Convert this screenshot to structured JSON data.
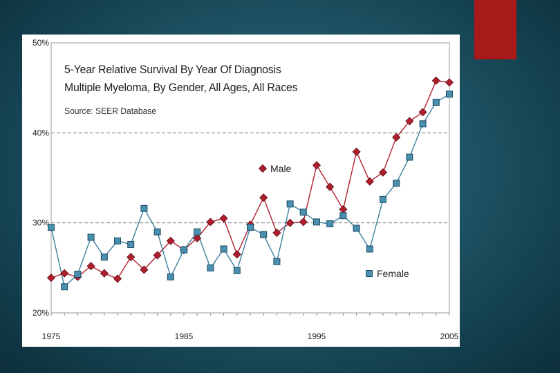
{
  "slide": {
    "background_color": "#1f5566",
    "accent_color": "#a81a1a"
  },
  "chart_data": {
    "type": "line",
    "title": "5-Year Relative Survival By Year Of Diagnosis",
    "subtitle": "Multiple Myeloma, By Gender, All Ages, All Races",
    "source": "Source: SEER Database",
    "xlabel": "",
    "ylabel": "",
    "xlim": [
      1975,
      2005
    ],
    "ylim": [
      20,
      50
    ],
    "x_tick_labels": [
      {
        "x": 1975,
        "label": "1975"
      },
      {
        "x": 1985,
        "label": "1985"
      },
      {
        "x": 1995,
        "label": "1995"
      },
      {
        "x": 2005,
        "label": "2005"
      }
    ],
    "y_tick_labels": [
      {
        "y": 20,
        "label": "20%"
      },
      {
        "y": 30,
        "label": "30%"
      },
      {
        "y": 40,
        "label": "40%"
      },
      {
        "y": 50,
        "label": "50%"
      }
    ],
    "gridlines": [
      30,
      40
    ],
    "x": [
      1975,
      1976,
      1977,
      1978,
      1979,
      1980,
      1981,
      1982,
      1983,
      1984,
      1985,
      1986,
      1987,
      1988,
      1989,
      1990,
      1991,
      1992,
      1993,
      1994,
      1995,
      1996,
      1997,
      1998,
      1999,
      2000,
      2001,
      2002,
      2003,
      2004,
      2005
    ],
    "series": [
      {
        "name": "Male",
        "color": "#b01e2e",
        "marker": "diamond",
        "values": [
          23.9,
          24.4,
          24.0,
          25.2,
          24.4,
          23.8,
          26.2,
          24.8,
          26.4,
          28.0,
          27.0,
          28.3,
          30.1,
          30.5,
          26.5,
          29.8,
          32.8,
          28.9,
          30.0,
          30.1,
          36.4,
          34.0,
          31.5,
          37.9,
          34.6,
          35.6,
          39.5,
          41.3,
          42.3,
          45.8,
          45.6
        ]
      },
      {
        "name": "Female",
        "color": "#3b7f9c",
        "marker": "square",
        "values": [
          29.5,
          22.9,
          24.3,
          28.4,
          26.2,
          28.0,
          27.6,
          31.6,
          29.0,
          24.0,
          27.0,
          29.0,
          25.0,
          27.1,
          24.7,
          29.5,
          28.7,
          25.7,
          32.1,
          31.2,
          30.1,
          29.9,
          30.8,
          29.4,
          27.1,
          32.6,
          34.4,
          37.3,
          41.0,
          43.4,
          44.3
        ]
      }
    ],
    "legend": [
      {
        "series": "Male",
        "label": "Male",
        "placement": "center"
      },
      {
        "series": "Female",
        "label": "Female",
        "placement": "bottom-right"
      }
    ]
  }
}
